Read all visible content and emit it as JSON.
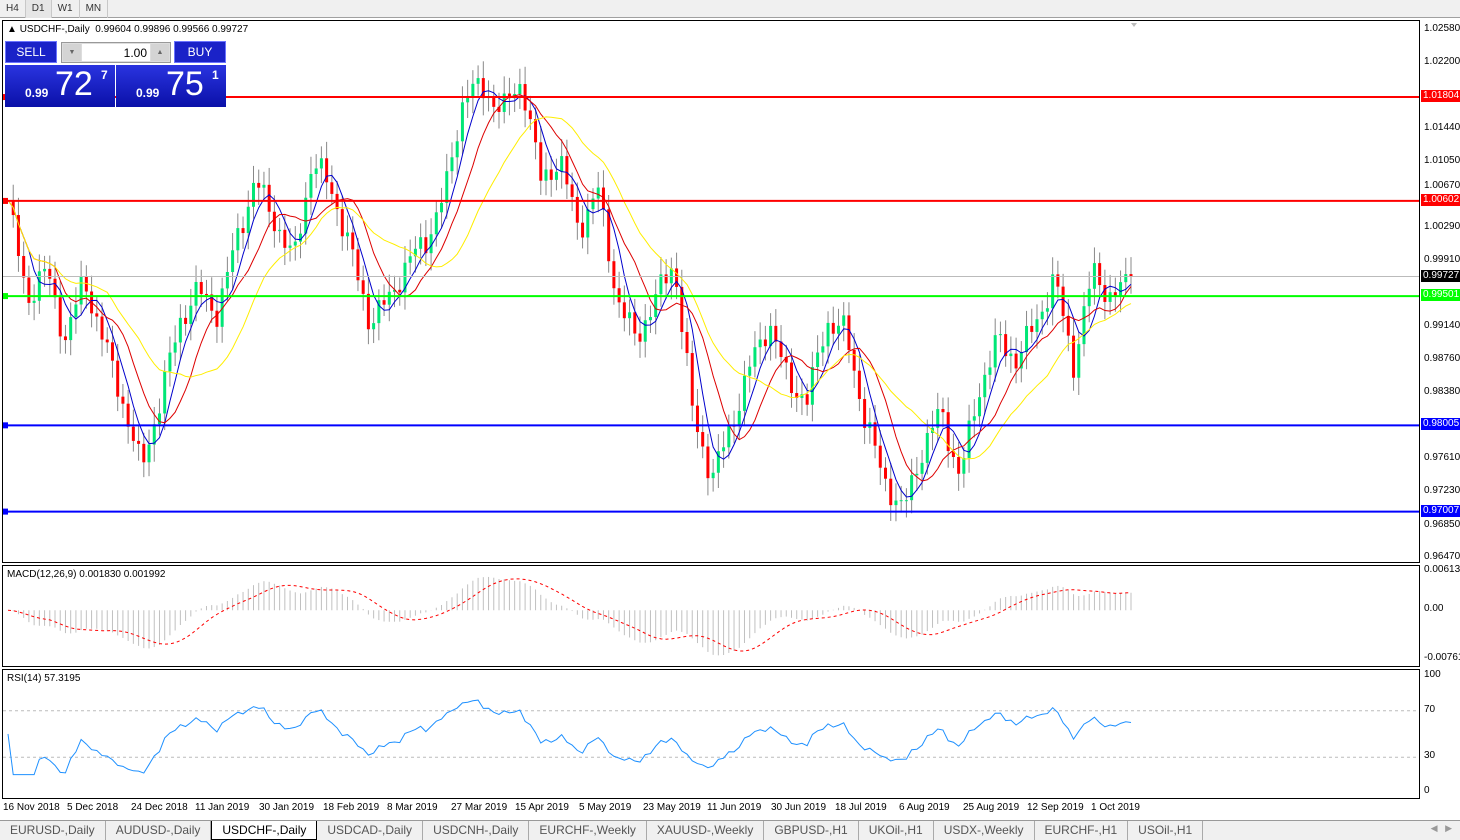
{
  "timeframes": [
    "H4",
    "D1",
    "W1",
    "MN"
  ],
  "active_timeframe": "D1",
  "chart": {
    "title": "USDCHF-,Daily",
    "ohlc": "0.99604 0.99896 0.99566 0.99727"
  },
  "trade": {
    "sell": "SELL",
    "buy": "BUY",
    "lot": "1.00",
    "sell_small": "0.99",
    "sell_big": "72",
    "sell_pip": "7",
    "buy_small": "0.99",
    "buy_big": "75",
    "buy_pip": "1"
  },
  "macd_title": "MACD(12,26,9) 0.001830 0.001992",
  "rsi_title": "RSI(14) 57.3195",
  "tabs": [
    "EURUSD-,Daily",
    "AUDUSD-,Daily",
    "USDCHF-,Daily",
    "USDCAD-,Daily",
    "USDCNH-,Daily",
    "EURCHF-,Weekly",
    "XAUUSD-,Weekly",
    "GBPUSD-,H1",
    "UKOil-,H1",
    "USDX-,Weekly",
    "EURCHF-,H1",
    "USOil-,H1"
  ],
  "active_tab": "USDCHF-,Daily",
  "colors": {
    "bull": "#00e676",
    "bear": "#ff0000",
    "ma_fast": "#0000cc",
    "ma_mid": "#dd0000",
    "ma_slow": "#ffee00",
    "rsi": "#1e90ff",
    "macd_signal": "#ff0000",
    "macd_hist": "#c0c0c0"
  },
  "chart_data": {
    "type": "candlestick",
    "ylim": [
      0.9647,
      1.0258
    ],
    "y_ticks": [
      "1.02580",
      "1.02200",
      "1.01440",
      "1.01050",
      "1.00670",
      "1.00290",
      "0.99910",
      "0.99140",
      "0.98760",
      "0.98380",
      "0.97610",
      "0.97230",
      "0.96850",
      "0.96470"
    ],
    "x_ticks": [
      "16 Nov 2018",
      "5 Dec 2018",
      "24 Dec 2018",
      "11 Jan 2019",
      "30 Jan 2019",
      "18 Feb 2019",
      "8 Mar 2019",
      "27 Mar 2019",
      "15 Apr 2019",
      "5 May 2019",
      "23 May 2019",
      "11 Jun 2019",
      "30 Jun 2019",
      "18 Jul 2019",
      "6 Aug 2019",
      "25 Aug 2019",
      "12 Sep 2019",
      "1 Oct 2019"
    ],
    "approx_closes": [
      1.0061,
      0.9946,
      0.9981,
      0.99,
      0.997,
      0.99,
      0.983,
      0.975,
      0.983,
      0.992,
      0.9957,
      0.993,
      1.0015,
      1.0084,
      1.0038,
      0.999,
      1.0108,
      1.0073,
      1.0003,
      0.992,
      0.9946,
      0.999,
      1.0015,
      1.0073,
      1.0188,
      1.0188,
      1.0165,
      1.02,
      1.0084,
      1.0108,
      1.0027,
      1.0073,
      0.9946,
      0.99,
      0.9946,
      0.999,
      0.981,
      0.974,
      0.98,
      0.987,
      0.992,
      0.985,
      0.983,
      0.992,
      0.991,
      0.981,
      0.974,
      0.97,
      0.977,
      0.9818,
      0.974,
      0.984,
      0.99,
      0.9876,
      0.992,
      0.997,
      0.987,
      0.998,
      0.9946,
      0.99727
    ],
    "levels": [
      {
        "value": "1.01804",
        "color": "#ff0000"
      },
      {
        "value": "1.00602",
        "color": "#ff0000"
      },
      {
        "value": "0.99501",
        "color": "#00ff00"
      },
      {
        "value": "0.98005",
        "color": "#0000ff"
      },
      {
        "value": "0.97007",
        "color": "#0000ff"
      }
    ],
    "current_price": "0.99727",
    "moving_averages": [
      "fast (blue)",
      "mid (red)",
      "slow (yellow)"
    ],
    "macd": {
      "params": "12,26,9",
      "ylim": [
        -0.00761,
        0.00613
      ],
      "y_ticks": [
        "0.00613",
        "0.00",
        "-0.007612"
      ]
    },
    "rsi": {
      "period": 14,
      "ylim": [
        0,
        100
      ],
      "levels": [
        70,
        30
      ],
      "y_ticks": [
        "100",
        "70",
        "30",
        "0"
      ]
    }
  }
}
